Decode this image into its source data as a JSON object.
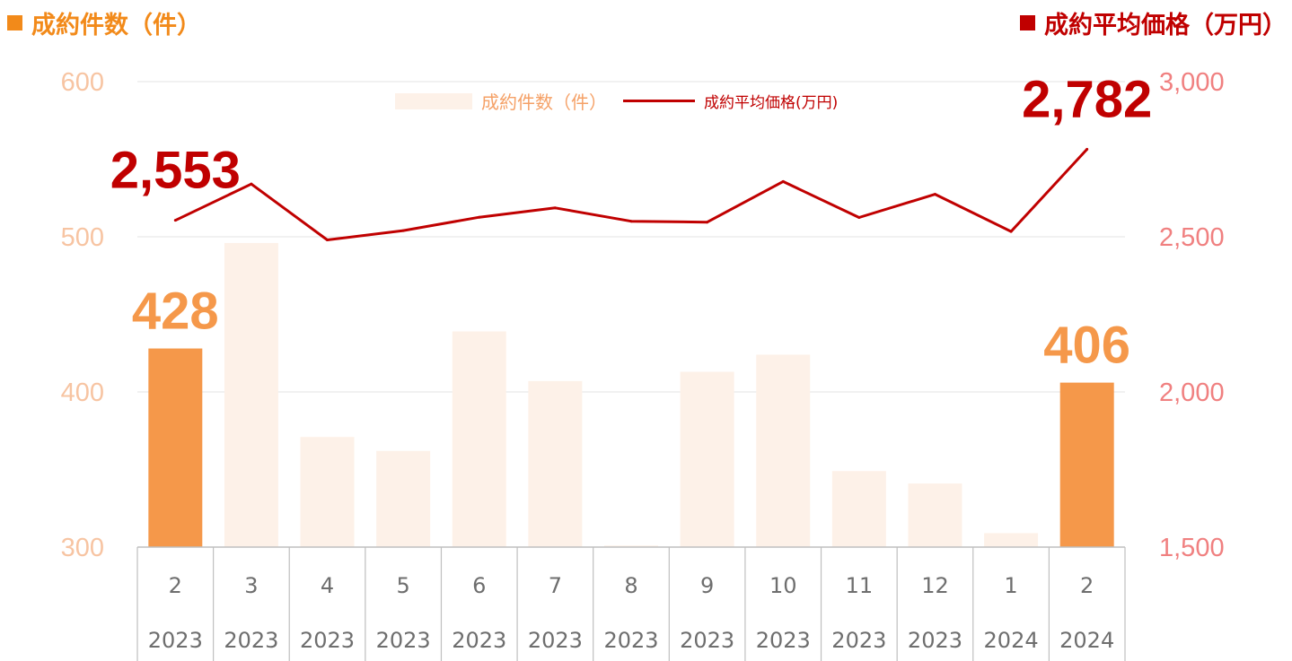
{
  "headers": {
    "left": "成約件数（件）",
    "right": "成約平均価格（万円）"
  },
  "legend": {
    "bar": "成約件数（件）",
    "line": "成約平均価格(万円)"
  },
  "colors": {
    "highlight_bar": "#F5984A",
    "faded_bar": "#FDF1E8",
    "line": "#C00000",
    "left_axis_text": "#F7C4A2",
    "right_axis_text": "#F08080",
    "header_left": "#F28A1A",
    "header_right": "#C00000"
  },
  "chart_data": {
    "type": "bar",
    "categories": [
      [
        "2",
        "2023"
      ],
      [
        "3",
        "2023"
      ],
      [
        "4",
        "2023"
      ],
      [
        "5",
        "2023"
      ],
      [
        "6",
        "2023"
      ],
      [
        "7",
        "2023"
      ],
      [
        "8",
        "2023"
      ],
      [
        "9",
        "2023"
      ],
      [
        "10",
        "2023"
      ],
      [
        "11",
        "2023"
      ],
      [
        "12",
        "2023"
      ],
      [
        "1",
        "2024"
      ],
      [
        "2",
        "2024"
      ]
    ],
    "series": [
      {
        "name": "成約件数（件）",
        "type": "bar",
        "axis": "left",
        "values": [
          428,
          496,
          371,
          362,
          439,
          407,
          301,
          413,
          424,
          349,
          341,
          309,
          406
        ],
        "highlighted": [
          true,
          false,
          false,
          false,
          false,
          false,
          false,
          false,
          false,
          false,
          false,
          false,
          true
        ]
      },
      {
        "name": "成約平均価格(万円)",
        "type": "line",
        "axis": "right",
        "values": [
          2553,
          2670,
          2490,
          2520,
          2563,
          2593,
          2550,
          2547,
          2678,
          2562,
          2637,
          2517,
          2782
        ]
      }
    ],
    "y_left": {
      "ticks": [
        "600",
        "500",
        "400",
        "300"
      ],
      "min": 300,
      "max": 600
    },
    "y_right": {
      "ticks": [
        "3,000",
        "2,500",
        "2,000",
        "1,500"
      ],
      "min": 1500,
      "max": 3000
    },
    "annotations": [
      {
        "series": 0,
        "index": 0,
        "text": "428"
      },
      {
        "series": 0,
        "index": 12,
        "text": "406"
      },
      {
        "series": 1,
        "index": 0,
        "text": "2,553"
      },
      {
        "series": 1,
        "index": 12,
        "text": "2,782"
      }
    ],
    "gridlines": true
  }
}
